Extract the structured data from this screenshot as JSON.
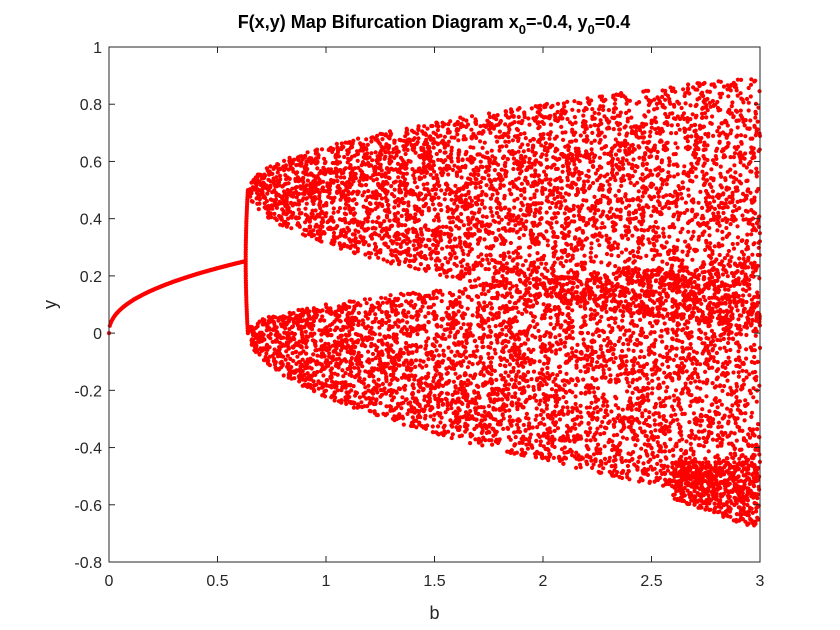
{
  "chart_data": {
    "type": "scatter",
    "title": {
      "main": "F(x,y) Map Bifurcation Diagram x",
      "x_sub": "0",
      "mid": "=-0.4, y",
      "y_sub": "0",
      "end": "=0.4"
    },
    "xlabel": "b",
    "ylabel": "y",
    "xlim": [
      0,
      3
    ],
    "ylim": [
      -0.8,
      1
    ],
    "xticks": [
      "0",
      "0.5",
      "1",
      "1.5",
      "2",
      "2.5",
      "3"
    ],
    "yticks": [
      "-0.8",
      "-0.6",
      "-0.4",
      "-0.2",
      "0",
      "0.2",
      "0.4",
      "0.6",
      "0.8",
      "1"
    ],
    "grid": false,
    "marker_color": "#ff0000",
    "series": [
      {
        "regions": [
          {
            "kind": "curve",
            "b_range": [
              0,
              0.62
            ],
            "y_start": 0.0,
            "y_end": 0.25
          },
          {
            "kind": "vertical_split",
            "b": 0.63,
            "y_range": [
              0.0,
              0.5
            ]
          },
          {
            "kind": "chaotic_band",
            "b_range": [
              0.65,
              3.0
            ],
            "upper_band": {
              "at_start": [
                0.48,
                0.52
              ],
              "at_end": [
                0.0,
                0.9
              ]
            },
            "lower_band": {
              "at_start": [
                -0.02,
                0.02
              ],
              "at_end": [
                -0.6,
                0.25
              ]
            },
            "merge_b": 1.45,
            "lower_tail": {
              "b_range": [
                2.6,
                3.0
              ],
              "y_min": -0.69
            }
          }
        ]
      }
    ]
  }
}
